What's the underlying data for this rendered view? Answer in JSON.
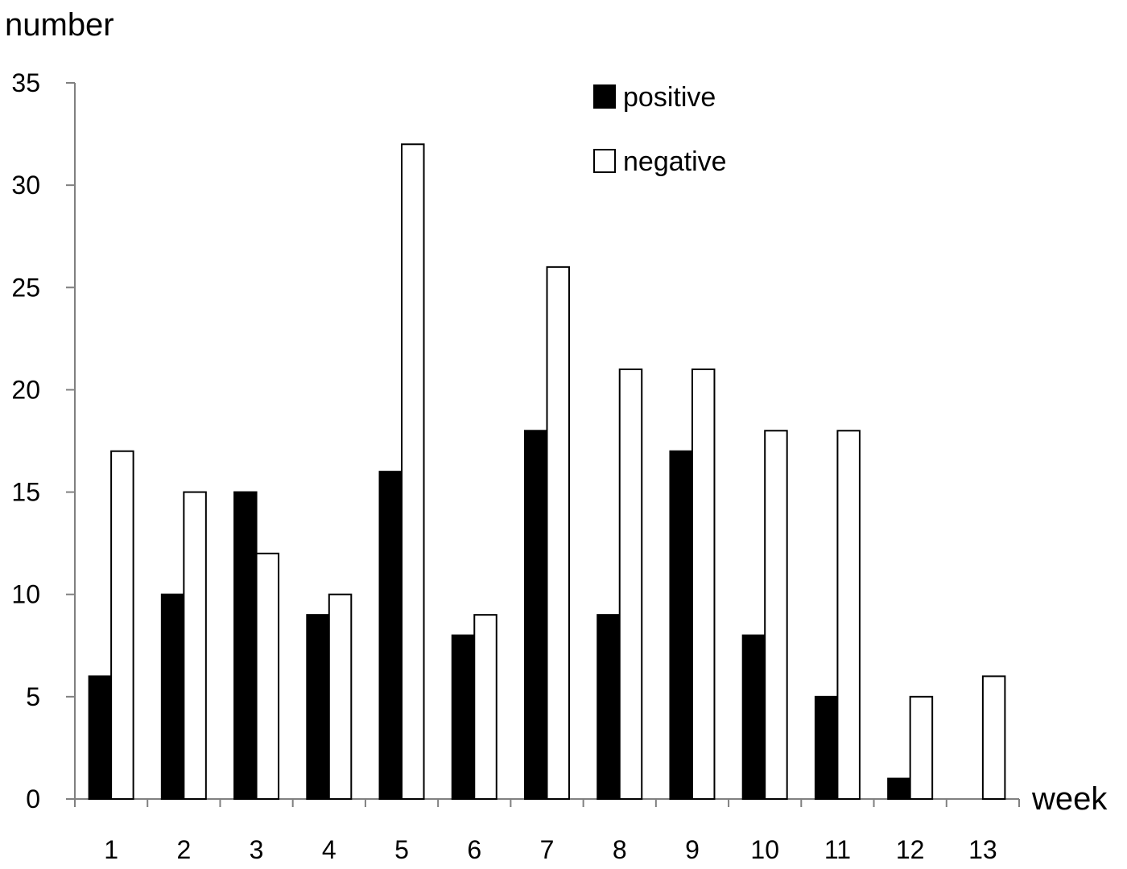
{
  "chart_data": {
    "type": "bar",
    "title": "",
    "xlabel": "week",
    "ylabel": "number",
    "categories": [
      "1",
      "2",
      "3",
      "4",
      "5",
      "6",
      "7",
      "8",
      "9",
      "10",
      "11",
      "12",
      "13"
    ],
    "series": [
      {
        "name": "positive",
        "color": "#000000",
        "values": [
          6,
          10,
          15,
          9,
          16,
          8,
          18,
          9,
          17,
          8,
          5,
          1,
          0
        ]
      },
      {
        "name": "negative",
        "color": "#ffffff",
        "values": [
          17,
          15,
          12,
          10,
          32,
          9,
          26,
          21,
          21,
          18,
          18,
          5,
          6
        ]
      }
    ],
    "ylim": [
      0,
      35
    ],
    "yticks": [
      0,
      5,
      10,
      15,
      20,
      25,
      30,
      35
    ],
    "grid": false,
    "legend": "top-center"
  }
}
